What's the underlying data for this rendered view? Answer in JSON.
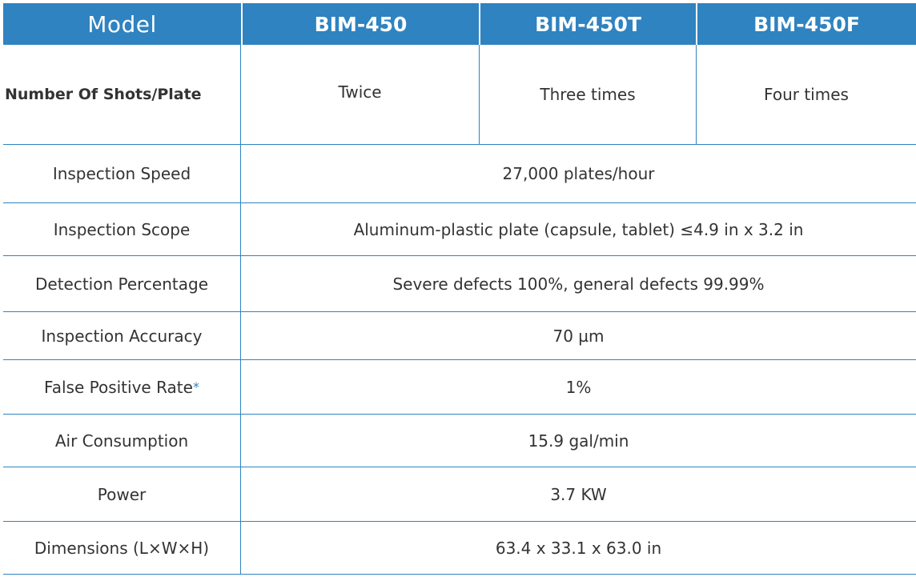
{
  "header": {
    "model_label": "Model",
    "models": [
      "BIM-450",
      "BIM-450T",
      "BIM-450F"
    ]
  },
  "shots_row": {
    "label": "Number Of Shots/Plate",
    "values": [
      "Twice",
      "Three times",
      "Four times"
    ]
  },
  "rows": [
    {
      "label": "Inspection Speed",
      "value": "27,000 plates/hour"
    },
    {
      "label": "Inspection Scope",
      "value": "Aluminum-plastic plate (capsule, tablet) ≤4.9 in x 3.2 in"
    },
    {
      "label": "Detection Percentage",
      "value": "Severe defects 100%, general defects 99.99%"
    },
    {
      "label": "Inspection Accuracy",
      "value": "70 µm"
    },
    {
      "label": "False Positive Rate",
      "label_mark": "*",
      "value": "1%"
    },
    {
      "label": "Air Consumption",
      "value": "15.9 gal/min"
    },
    {
      "label": "Power",
      "value": "3.7 KW"
    },
    {
      "label": "Dimensions (L×W×H)",
      "value": "63.4 x 33.1 x 63.0 in"
    }
  ],
  "colors": {
    "header_bg": "#2f83c0",
    "border": "#2f83c0",
    "text": "#333333"
  }
}
